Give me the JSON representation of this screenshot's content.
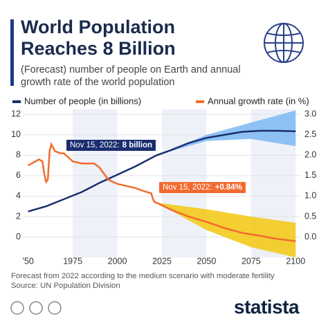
{
  "chart_data": {
    "type": "line",
    "title": "World Population Reaches 8 Billion",
    "subtitle": "(Forecast) number of people on Earth and annual growth rate of the world population",
    "note": "Forecast from 2022 according to the medium scenario with moderate fertility",
    "source": "Source: UN Population Division",
    "brand": "statista",
    "xlim": [
      1947,
      2103
    ],
    "xticks": [
      {
        "value": 1950,
        "label": "'50"
      },
      1975,
      2000,
      2025,
      2050,
      2075,
      2100
    ],
    "ylim": [
      -2,
      12.5
    ],
    "yticks": [
      0,
      2,
      4,
      6,
      8,
      10,
      12
    ],
    "y2lim": [
      -0.5,
      3.125
    ],
    "y2ticks": [
      {
        "value": 0,
        "label": "0.0"
      },
      0.5,
      {
        "value": 1,
        "label": "1.0"
      },
      1.5,
      {
        "value": 2,
        "label": "2.0"
      },
      2.5,
      {
        "value": 3,
        "label": "3.0"
      }
    ],
    "grid": true,
    "series": [
      {
        "name": "Number of people (in billions)",
        "color": "#1a2e6e",
        "x": [
          1950,
          1960,
          1970,
          1980,
          1990,
          2000,
          2010,
          2022,
          2030,
          2040,
          2050,
          2060,
          2070,
          2080,
          2090,
          2100
        ],
        "values": [
          2.5,
          3.0,
          3.7,
          4.4,
          5.3,
          6.1,
          6.9,
          8.0,
          8.5,
          9.2,
          9.7,
          10.0,
          10.3,
          10.4,
          10.4,
          10.35
        ]
      },
      {
        "name": "Annual growth rate (in %)",
        "color": "#f26a2e",
        "axis": "y2",
        "x": [
          1950,
          1952,
          1954,
          1956,
          1958,
          1959,
          1960,
          1961,
          1962,
          1963,
          1965,
          1968,
          1970,
          1975,
          1980,
          1985,
          1987,
          1990,
          1995,
          2000,
          2005,
          2010,
          2015,
          2019,
          2020,
          2021,
          2022,
          2030,
          2040,
          2050,
          2060,
          2070,
          2080,
          2090,
          2100
        ],
        "values": [
          1.75,
          1.8,
          1.85,
          1.9,
          1.85,
          1.55,
          1.35,
          1.4,
          2.1,
          2.27,
          2.1,
          2.05,
          2.05,
          1.85,
          1.8,
          1.8,
          1.8,
          1.7,
          1.4,
          1.3,
          1.25,
          1.2,
          1.12,
          1.07,
          0.92,
          0.85,
          0.84,
          0.67,
          0.5,
          0.37,
          0.22,
          0.1,
          0.03,
          -0.05,
          -0.1
        ]
      }
    ],
    "bands": [
      {
        "color": "#7db8f2",
        "x": [
          2022,
          2050,
          2075,
          2100
        ],
        "low": [
          8.0,
          9.4,
          9.6,
          8.9
        ],
        "high": [
          8.0,
          10.0,
          11.2,
          12.4
        ]
      },
      {
        "color": "#f2c80f",
        "axis": "y2",
        "x": [
          2022,
          2050,
          2075,
          2100
        ],
        "low": [
          0.84,
          0.17,
          -0.25,
          -0.5
        ],
        "high": [
          0.84,
          0.68,
          0.5,
          0.35
        ]
      }
    ],
    "annotations": [
      {
        "text": "Nov 15, 2022:",
        "emphasis": "8 billion",
        "color": "#1a2e6e"
      },
      {
        "text": "Nov 15, 2022:",
        "emphasis": "+0.84%",
        "color": "#f26a2e"
      }
    ]
  }
}
